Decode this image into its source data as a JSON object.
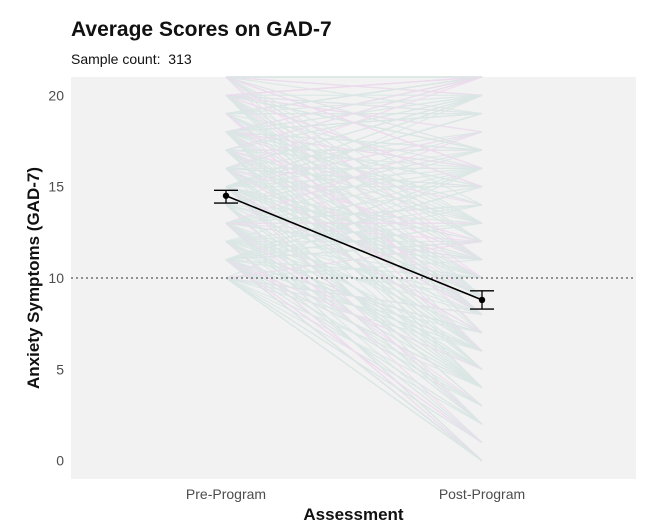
{
  "chart": {
    "title": "Average Scores on GAD-7",
    "subtitle_label": "Sample count:",
    "subtitle_value": "313"
  },
  "chart_data": {
    "type": "line",
    "title": "Average Scores on GAD-7",
    "subtitle": "Sample count:  313",
    "xlabel": "Assessment",
    "ylabel": "Anxiety Symptoms (GAD-7)",
    "categories": [
      "Pre-Program",
      "Post-Program"
    ],
    "ylim": [
      -1,
      21
    ],
    "yticks": [
      0,
      5,
      10,
      15,
      20
    ],
    "reference_line": {
      "y": 10,
      "style": "dotted",
      "color": "#555555"
    },
    "mean": {
      "values": [
        14.5,
        8.8
      ],
      "error_low": [
        14.1,
        8.3
      ],
      "error_high": [
        14.8,
        9.3
      ],
      "color": "#000000"
    },
    "individual_trajectories": {
      "count": 313,
      "colors": [
        "#d9e6e4",
        "#efd9ef"
      ],
      "note_pre_range": [
        10,
        21
      ],
      "note_post_range": [
        0,
        21
      ]
    },
    "panel_background": "#f2f2f2",
    "grid": false
  }
}
